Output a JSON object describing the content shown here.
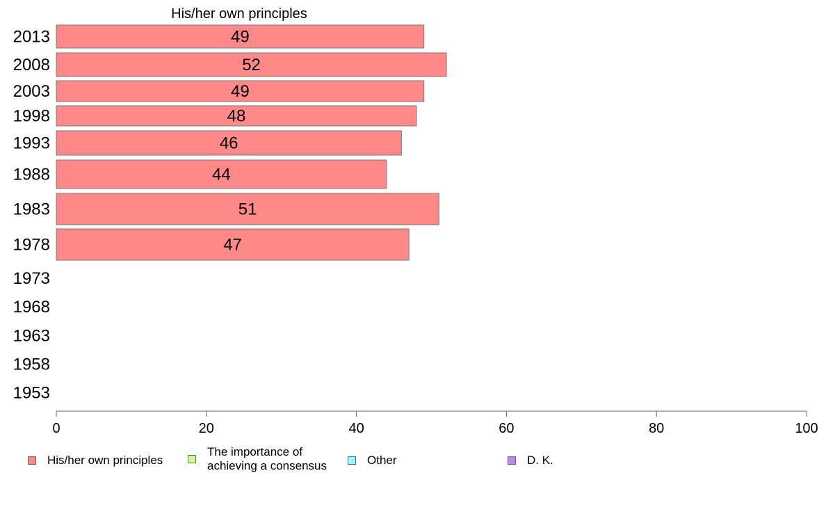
{
  "chart_data": {
    "type": "bar",
    "orientation": "horizontal",
    "title": "His/her own principles",
    "categories": [
      "2013",
      "2008",
      "2003",
      "1998",
      "1993",
      "1988",
      "1983",
      "1978",
      "1973",
      "1968",
      "1963",
      "1958",
      "1953"
    ],
    "series": [
      {
        "name": "His/her own principles",
        "color": "#ff8888",
        "values": [
          49,
          52,
          49,
          48,
          46,
          44,
          51,
          47,
          null,
          null,
          null,
          null,
          null
        ]
      },
      {
        "name": "The importance of achieving a consensus",
        "color": "#ccff88",
        "values": [
          null,
          null,
          null,
          null,
          null,
          null,
          null,
          null,
          null,
          null,
          null,
          null,
          null
        ]
      },
      {
        "name": "Other",
        "color": "#88ffff",
        "values": [
          null,
          null,
          null,
          null,
          null,
          null,
          null,
          null,
          null,
          null,
          null,
          null,
          null
        ]
      },
      {
        "name": "D. K.",
        "color": "#bb88ff",
        "values": [
          null,
          null,
          null,
          null,
          null,
          null,
          null,
          null,
          null,
          null,
          null,
          null,
          null
        ]
      }
    ],
    "xlim": [
      0,
      100
    ],
    "xticks": [
      "0",
      "20",
      "40",
      "60",
      "80",
      "100"
    ],
    "grid": false,
    "legend_position": "bottom"
  },
  "legend": {
    "items": [
      {
        "label": "His/her own principles",
        "color": "#ff8888"
      },
      {
        "label_line1": "The importance of",
        "label_line2": "achieving a consensus",
        "color": "#ccff88"
      },
      {
        "label": "Other",
        "color": "#88ffff"
      },
      {
        "label": "D. K.",
        "color": "#bb88ff"
      }
    ]
  }
}
